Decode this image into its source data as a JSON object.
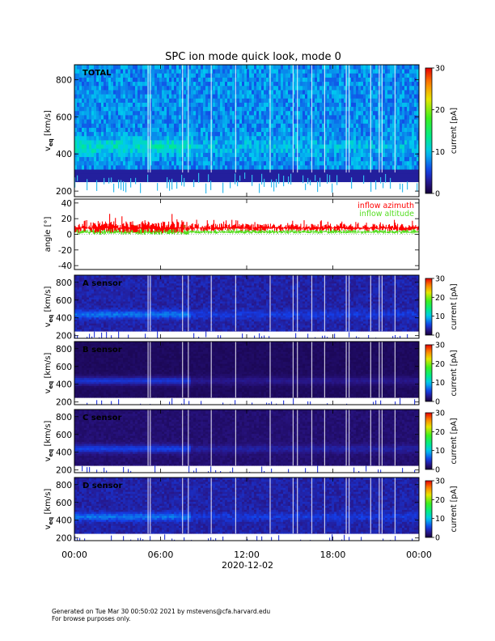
{
  "figure_title": "SPC ion mode quick look, mode 0",
  "footer": {
    "line1": "Generated on Tue Mar 30 00:50:02 2021 by mstevens@cfa.harvard.edu",
    "line2": "For browse purposes only."
  },
  "chart_data": [
    {
      "type": "heatmap",
      "panel": "TOTAL",
      "label": "TOTAL",
      "ylabel": "v",
      "ylabel_sub": "eq",
      "ylabel_unit": "[km/s]",
      "yticks": [
        200,
        400,
        600,
        800
      ],
      "ylim": [
        170,
        880
      ],
      "colorbar": {
        "label": "current [pA]",
        "ticks": [
          0,
          10,
          20,
          30
        ],
        "range": [
          0,
          30
        ]
      },
      "background_level_pA": 8,
      "peak_speed_kms": 430,
      "lower_cutoff_kms": 300
    },
    {
      "type": "line",
      "panel": "angle",
      "ylabel": "angle [°]",
      "yticks": [
        -40,
        -20,
        0,
        20,
        40
      ],
      "ylim": [
        -45,
        45
      ],
      "series": [
        {
          "name": "inflow azimuth",
          "color": "#ff0000",
          "mean_deg": 8,
          "spread_deg": 7
        },
        {
          "name": "inflow altitude",
          "color": "#55dd22",
          "mean_deg": 3,
          "spread_deg": 4
        }
      ]
    },
    {
      "type": "heatmap",
      "panel": "A",
      "label": "A sensor",
      "ylabel": "v",
      "ylabel_sub": "eq",
      "ylabel_unit": "[km/s]",
      "yticks": [
        200,
        400,
        600,
        800
      ],
      "ylim": [
        170,
        880
      ],
      "colorbar": {
        "label": "current [pA]",
        "ticks": [
          0,
          10,
          20,
          30
        ],
        "range": [
          0,
          30
        ]
      },
      "background_level_pA": 3.5,
      "peak_speed_kms": 430
    },
    {
      "type": "heatmap",
      "panel": "B",
      "label": "B sensor",
      "ylabel": "v",
      "ylabel_sub": "eq",
      "ylabel_unit": "[km/s]",
      "yticks": [
        200,
        400,
        600,
        800
      ],
      "ylim": [
        170,
        880
      ],
      "colorbar": {
        "label": "current [pA]",
        "ticks": [
          0,
          10,
          20,
          30
        ],
        "range": [
          0,
          30
        ]
      },
      "background_level_pA": 1.2,
      "peak_speed_kms": 430
    },
    {
      "type": "heatmap",
      "panel": "C",
      "label": "C sensor",
      "ylabel": "v",
      "ylabel_sub": "eq",
      "ylabel_unit": "[km/s]",
      "yticks": [
        200,
        400,
        600,
        800
      ],
      "ylim": [
        170,
        880
      ],
      "colorbar": {
        "label": "current [pA]",
        "ticks": [
          0,
          10,
          20,
          30
        ],
        "range": [
          0,
          30
        ]
      },
      "background_level_pA": 1.8,
      "peak_speed_kms": 430
    },
    {
      "type": "heatmap",
      "panel": "D",
      "label": "D sensor",
      "ylabel": "v",
      "ylabel_sub": "eq",
      "ylabel_unit": "[km/s]",
      "yticks": [
        200,
        400,
        600,
        800
      ],
      "ylim": [
        170,
        880
      ],
      "colorbar": {
        "label": "current [pA]",
        "ticks": [
          0,
          10,
          20,
          30
        ],
        "range": [
          0,
          30
        ]
      },
      "background_level_pA": 3.5,
      "peak_speed_kms": 430
    }
  ],
  "time_axis": {
    "ticks": [
      "00:00",
      "06:00",
      "12:00",
      "18:00",
      "00:00"
    ],
    "hours": [
      0,
      6,
      12,
      18,
      24
    ],
    "date_label": "2020-12-02"
  }
}
